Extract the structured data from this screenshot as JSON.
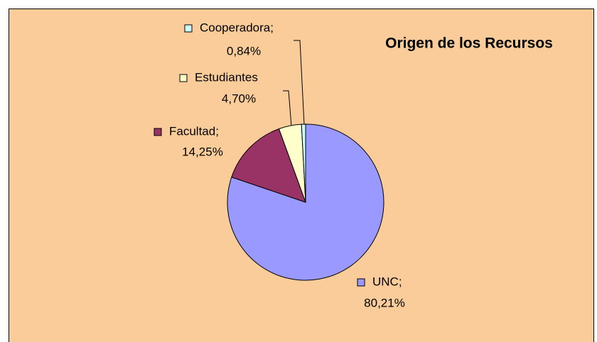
{
  "chart_data": {
    "type": "pie",
    "title": "Origen de los Recursos",
    "categories": [
      "UNC;",
      "Facultad;",
      "Estudiantes",
      "Cooperadora;"
    ],
    "values": [
      80.21,
      14.25,
      4.7,
      0.84
    ],
    "value_labels": [
      "80,21%",
      "14,25%",
      "4,70%",
      "0,84%"
    ],
    "colors": [
      "#9999ff",
      "#993366",
      "#ffffcc",
      "#ccffff"
    ]
  }
}
